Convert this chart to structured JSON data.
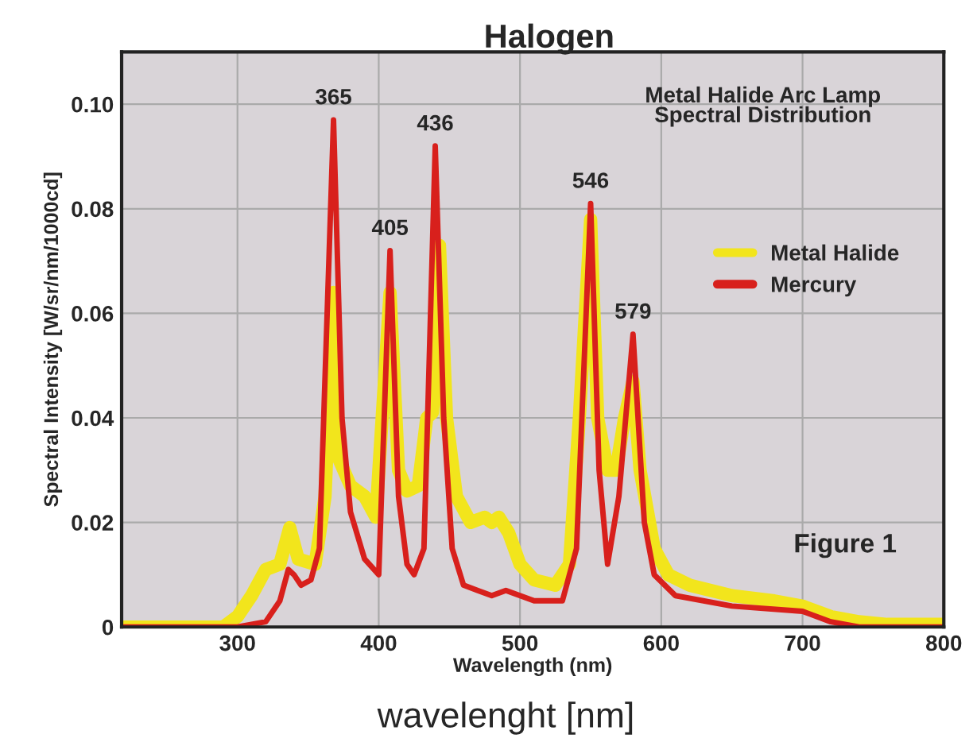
{
  "chart_data": {
    "type": "line",
    "title": "Halogen",
    "xlabel": "Wavelength (nm)",
    "ylabel": "Spectral Intensity [W/sr/nm/1000cd]",
    "xlim": [
      218,
      800
    ],
    "ylim": [
      0,
      0.11
    ],
    "xticks": [
      300,
      400,
      500,
      600,
      700,
      800
    ],
    "yticks": [
      {
        "value": 0,
        "label": "0"
      },
      {
        "value": 0.02,
        "label": "0.02"
      },
      {
        "value": 0.04,
        "label": "0.04"
      },
      {
        "value": 0.06,
        "label": "0.06"
      },
      {
        "value": 0.08,
        "label": "0.08"
      },
      {
        "value": 0.1,
        "label": "0.10"
      }
    ],
    "grid": true,
    "legend": "right",
    "marker": "none",
    "line_style": "solid",
    "series": [
      {
        "name": "Metal Halide",
        "color": "#f2e51c",
        "x": [
          218,
          290,
          300,
          310,
          320,
          330,
          337,
          343,
          355,
          362,
          368,
          372,
          380,
          390,
          398,
          408,
          414,
          420,
          428,
          434,
          438,
          443,
          448,
          455,
          465,
          475,
          480,
          485,
          492,
          500,
          510,
          525,
          535,
          542,
          550,
          555,
          562,
          568,
          574,
          580,
          585,
          595,
          605,
          620,
          650,
          680,
          700,
          720,
          740,
          760,
          800
        ],
        "values": [
          0,
          0,
          0.002,
          0.006,
          0.011,
          0.012,
          0.019,
          0.013,
          0.012,
          0.025,
          0.064,
          0.032,
          0.027,
          0.025,
          0.021,
          0.064,
          0.03,
          0.026,
          0.027,
          0.04,
          0.041,
          0.073,
          0.04,
          0.025,
          0.02,
          0.021,
          0.02,
          0.021,
          0.018,
          0.012,
          0.009,
          0.008,
          0.012,
          0.04,
          0.078,
          0.04,
          0.03,
          0.03,
          0.04,
          0.047,
          0.03,
          0.015,
          0.01,
          0.008,
          0.006,
          0.005,
          0.004,
          0.002,
          0.001,
          0.0005,
          0.0005
        ]
      },
      {
        "name": "Mercury",
        "color": "#d8201c",
        "x": [
          218,
          300,
          320,
          330,
          336,
          340,
          345,
          352,
          358,
          368,
          374,
          380,
          390,
          400,
          408,
          414,
          420,
          425,
          432,
          440,
          446,
          452,
          460,
          470,
          480,
          490,
          500,
          510,
          530,
          540,
          550,
          556,
          562,
          570,
          580,
          588,
          595,
          610,
          650,
          700,
          720,
          740,
          800
        ],
        "values": [
          0,
          0,
          0.001,
          0.005,
          0.011,
          0.01,
          0.008,
          0.009,
          0.015,
          0.097,
          0.04,
          0.022,
          0.013,
          0.01,
          0.072,
          0.025,
          0.012,
          0.01,
          0.015,
          0.092,
          0.04,
          0.015,
          0.008,
          0.007,
          0.006,
          0.007,
          0.006,
          0.005,
          0.005,
          0.015,
          0.081,
          0.03,
          0.012,
          0.025,
          0.056,
          0.02,
          0.01,
          0.006,
          0.004,
          0.003,
          0.001,
          0,
          0
        ]
      }
    ],
    "annotations": [
      {
        "text": "365",
        "x": 368,
        "y": 0.097
      },
      {
        "text": "405",
        "x": 408,
        "y": 0.072
      },
      {
        "text": "436",
        "x": 440,
        "y": 0.092
      },
      {
        "text": "546",
        "x": 550,
        "y": 0.081
      },
      {
        "text": "579",
        "x": 580,
        "y": 0.056
      },
      "Metal Halide Arc Lamp\nSpectral Distribution",
      "Figure 1",
      "wavelenght [nm]"
    ]
  }
}
